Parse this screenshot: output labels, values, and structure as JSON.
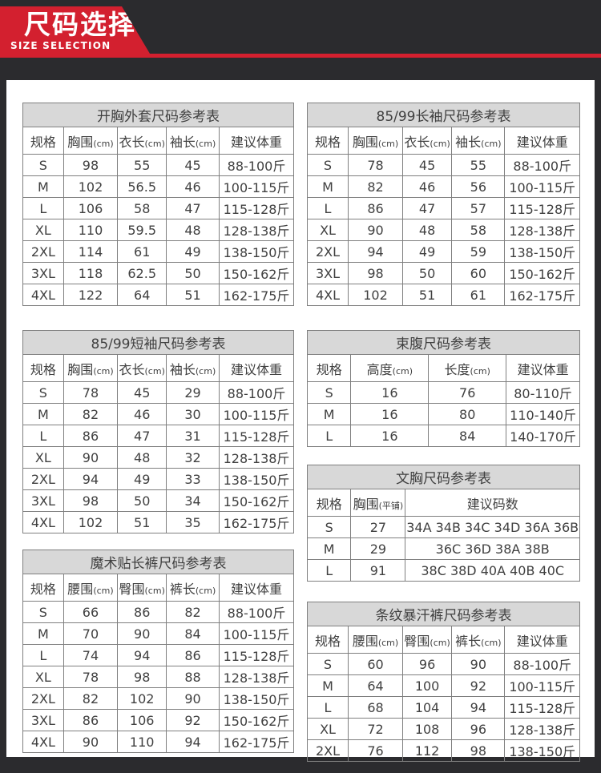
{
  "header": {
    "title": "尺码选择",
    "subtitle": "SIZE SELECTION"
  },
  "colors": {
    "accent_red": "#d3202f",
    "dark_background": "#2b2b2e",
    "table_title_background": "#d8d8d8",
    "table_border": "#7f7f7f",
    "text": "#404040"
  },
  "tables": [
    {
      "title": "开胸外套尺码参考表",
      "headers": [
        {
          "label": "规格"
        },
        {
          "label": "胸围",
          "unit": "(cm)"
        },
        {
          "label": "衣长",
          "unit": "(cm)"
        },
        {
          "label": "袖长",
          "unit": "(cm)"
        },
        {
          "label": "建议体重"
        }
      ],
      "rows": [
        [
          "S",
          "98",
          "55",
          "45",
          "88-100斤"
        ],
        [
          "M",
          "102",
          "56.5",
          "46",
          "100-115斤"
        ],
        [
          "L",
          "106",
          "58",
          "47",
          "115-128斤"
        ],
        [
          "XL",
          "110",
          "59.5",
          "48",
          "128-138斤"
        ],
        [
          "2XL",
          "114",
          "61",
          "49",
          "138-150斤"
        ],
        [
          "3XL",
          "118",
          "62.5",
          "50",
          "150-162斤"
        ],
        [
          "4XL",
          "122",
          "64",
          "51",
          "162-175斤"
        ]
      ]
    },
    {
      "title": "85/99长袖尺码参考表",
      "headers": [
        {
          "label": "规格"
        },
        {
          "label": "胸围",
          "unit": "(cm)"
        },
        {
          "label": "衣长",
          "unit": "(cm)"
        },
        {
          "label": "袖长",
          "unit": "(cm)"
        },
        {
          "label": "建议体重"
        }
      ],
      "rows": [
        [
          "S",
          "78",
          "45",
          "55",
          "88-100斤"
        ],
        [
          "M",
          "82",
          "46",
          "56",
          "100-115斤"
        ],
        [
          "L",
          "86",
          "47",
          "57",
          "115-128斤"
        ],
        [
          "XL",
          "90",
          "48",
          "58",
          "128-138斤"
        ],
        [
          "2XL",
          "94",
          "49",
          "59",
          "138-150斤"
        ],
        [
          "3XL",
          "98",
          "50",
          "60",
          "150-162斤"
        ],
        [
          "4XL",
          "102",
          "51",
          "61",
          "162-175斤"
        ]
      ]
    },
    {
      "title": "85/99短袖尺码参考表",
      "headers": [
        {
          "label": "规格"
        },
        {
          "label": "胸围",
          "unit": "(cm)"
        },
        {
          "label": "衣长",
          "unit": "(cm)"
        },
        {
          "label": "袖长",
          "unit": "(cm)"
        },
        {
          "label": "建议体重"
        }
      ],
      "rows": [
        [
          "S",
          "78",
          "45",
          "29",
          "88-100斤"
        ],
        [
          "M",
          "82",
          "46",
          "30",
          "100-115斤"
        ],
        [
          "L",
          "86",
          "47",
          "31",
          "115-128斤"
        ],
        [
          "XL",
          "90",
          "48",
          "32",
          "128-138斤"
        ],
        [
          "2XL",
          "94",
          "49",
          "33",
          "138-150斤"
        ],
        [
          "3XL",
          "98",
          "50",
          "34",
          "150-162斤"
        ],
        [
          "4XL",
          "102",
          "51",
          "35",
          "162-175斤"
        ]
      ]
    },
    {
      "title": "束腹尺码参考表",
      "headers": [
        {
          "label": "规格"
        },
        {
          "label": "高度",
          "unit": "(cm)"
        },
        {
          "label": "长度",
          "unit": "(cm)"
        },
        {
          "label": "建议体重"
        }
      ],
      "rows": [
        [
          "S",
          "16",
          "76",
          "80-110斤"
        ],
        [
          "M",
          "16",
          "80",
          "110-140斤"
        ],
        [
          "L",
          "16",
          "84",
          "140-170斤"
        ]
      ]
    },
    {
      "title": "文胸尺码参考表",
      "headers": [
        {
          "label": "规格"
        },
        {
          "label": "胸围",
          "unit": "(平铺)"
        },
        {
          "label": "建议码数"
        }
      ],
      "rows": [
        [
          "S",
          "27",
          "34A 34B 34C 34D 36A 36B"
        ],
        [
          "M",
          "29",
          "36C 36D 38A 38B"
        ],
        [
          "L",
          "91",
          "38C 38D 40A 40B 40C"
        ]
      ]
    },
    {
      "title": "魔术贴长裤尺码参考表",
      "headers": [
        {
          "label": "规格"
        },
        {
          "label": "腰围",
          "unit": "(cm)"
        },
        {
          "label": "臀围",
          "unit": "(cm)"
        },
        {
          "label": "裤长",
          "unit": "(cm)"
        },
        {
          "label": "建议体重"
        }
      ],
      "rows": [
        [
          "S",
          "66",
          "86",
          "82",
          "88-100斤"
        ],
        [
          "M",
          "70",
          "90",
          "84",
          "100-115斤"
        ],
        [
          "L",
          "74",
          "94",
          "86",
          "115-128斤"
        ],
        [
          "XL",
          "78",
          "98",
          "88",
          "128-138斤"
        ],
        [
          "2XL",
          "82",
          "102",
          "90",
          "138-150斤"
        ],
        [
          "3XL",
          "86",
          "106",
          "92",
          "150-162斤"
        ],
        [
          "4XL",
          "90",
          "110",
          "94",
          "162-175斤"
        ]
      ]
    },
    {
      "title": "条纹暴汗裤尺码参考表",
      "headers": [
        {
          "label": "规格"
        },
        {
          "label": "腰围",
          "unit": "(cm)"
        },
        {
          "label": "臀围",
          "unit": "(cm)"
        },
        {
          "label": "裤长",
          "unit": "(cm)"
        },
        {
          "label": "建议体重"
        }
      ],
      "rows": [
        [
          "S",
          "60",
          "96",
          "90",
          "88-100斤"
        ],
        [
          "M",
          "64",
          "100",
          "92",
          "100-115斤"
        ],
        [
          "L",
          "68",
          "104",
          "94",
          "115-128斤"
        ],
        [
          "XL",
          "72",
          "108",
          "96",
          "128-138斤"
        ],
        [
          "2XL",
          "76",
          "112",
          "98",
          "138-150斤"
        ]
      ]
    }
  ]
}
